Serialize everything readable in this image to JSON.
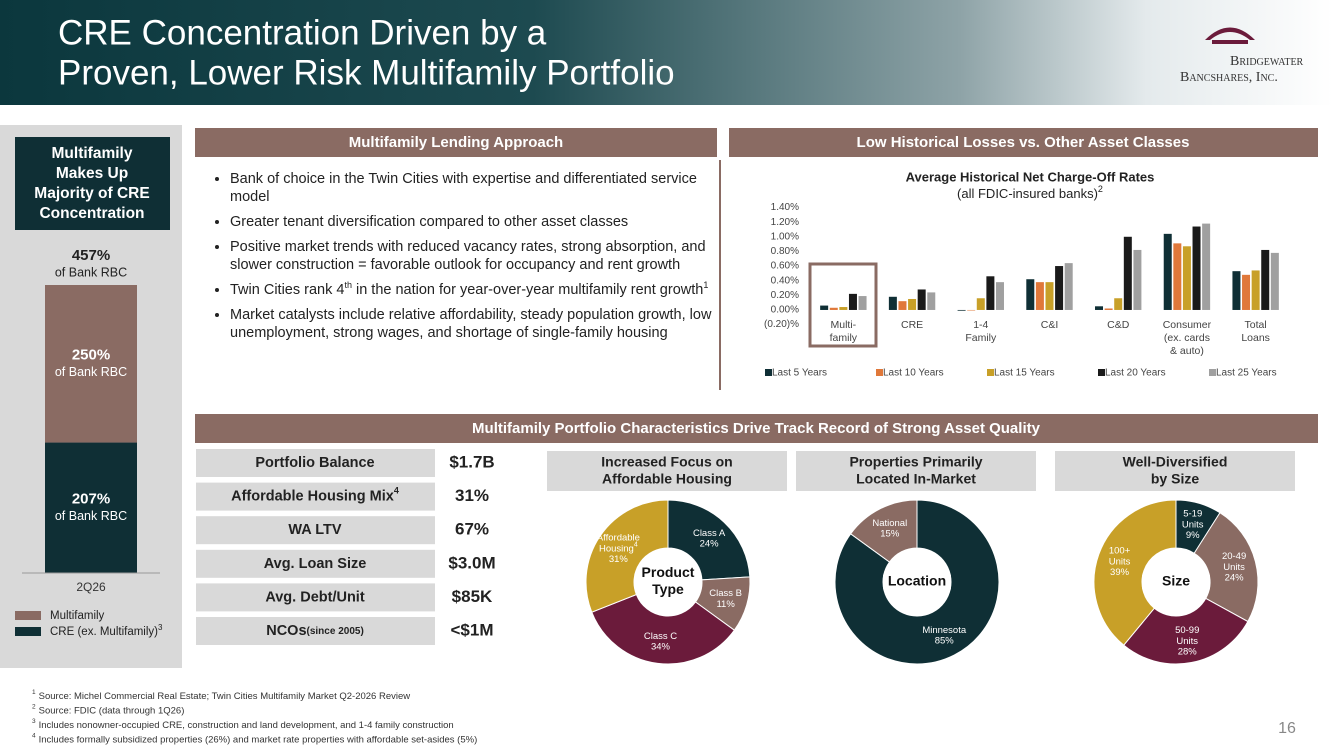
{
  "header": {
    "title": [
      "CRE Concentration Driven by a",
      "Proven, Lower Risk Multifamily Portfolio"
    ],
    "logo": [
      "Bridgewater",
      "Bancshares, Inc."
    ]
  },
  "approach": {
    "heading": "Multifamily Lending Approach",
    "bullets": [
      [
        {
          "text": "Bank of choice in the Twin Cities with expertise and differentiated service model"
        }
      ],
      [
        {
          "text": "Greater tenant diversification compared to other asset classes"
        }
      ],
      [
        {
          "text": "Positive market trends with reduced vacancy rates, strong absorption, and slower construction = favorable outlook for occupancy and rent growth"
        }
      ],
      [
        {
          "text": "Twin Cities rank 4"
        },
        {
          "sup": "th"
        },
        {
          "text": " in the nation for year-over-year multifamily rent growth"
        },
        {
          "sup": "1"
        }
      ],
      [
        {
          "text": "Market catalysts include relative affordability, steady population growth, low unemployment, strong wages, and shortage of single-family housing"
        }
      ]
    ]
  },
  "losses_heading": "Low Historical Losses vs. Other Asset Classes",
  "portfolio": {
    "heading": "Multifamily Portfolio Characteristics Drive Track Record of Strong Asset Quality",
    "rows": [
      {
        "label": "Portfolio Balance",
        "value": "$1.7B"
      },
      {
        "label": "Affordable Housing Mix",
        "label_sup": "4",
        "value": "31%"
      },
      {
        "label": "WA LTV",
        "value": "67%"
      },
      {
        "label": "Avg. Loan Size",
        "value": "$3.0M"
      },
      {
        "label": "Avg. Debt/Unit",
        "value": "$85K"
      },
      {
        "label": "NCOs",
        "label_note": "(since 2005)",
        "value": "<$1M"
      }
    ]
  },
  "chart_data": [
    {
      "type": "stacked_bar",
      "title": [
        "Multifamily",
        "Makes Up",
        "Majority of CRE",
        "Concentration"
      ],
      "categories": [
        "2Q26"
      ],
      "series": [
        {
          "name": "CRE (ex. Multifamily)",
          "name_sup": "3",
          "color": "#0f2f35",
          "values": [
            207
          ],
          "value_labels": [
            "207%"
          ]
        },
        {
          "name": "Multifamily",
          "color": "#8a6b63",
          "values": [
            250
          ],
          "value_labels": [
            "250%"
          ]
        }
      ],
      "segment_caption": "of Bank RBC",
      "total": [
        457
      ],
      "total_labels": [
        "457%"
      ]
    },
    {
      "type": "bar",
      "title": "Average Historical Net Charge-Off Rates",
      "subtitle": "(all FDIC-insured banks)",
      "subtitle_sup": "2",
      "categories": [
        [
          "Multi-",
          "family"
        ],
        [
          "CRE"
        ],
        [
          "1-4",
          "Family"
        ],
        [
          "C&I"
        ],
        [
          "C&D"
        ],
        [
          "Consumer",
          "(ex. cards",
          "& auto)"
        ],
        [
          "Total",
          "Loans"
        ]
      ],
      "series": [
        {
          "name": "Last 5 Years",
          "color": "#0f2f35",
          "values": [
            0.06,
            0.18,
            -0.01,
            0.42,
            0.05,
            1.04,
            0.53
          ]
        },
        {
          "name": "Last 10 Years",
          "color": "#e0783a",
          "values": [
            0.03,
            0.12,
            0.0,
            0.38,
            0.02,
            0.91,
            0.48
          ]
        },
        {
          "name": "Last 15 Years",
          "color": "#c8a028",
          "values": [
            0.04,
            0.15,
            0.16,
            0.38,
            0.16,
            0.87,
            0.54
          ]
        },
        {
          "name": "Last 20 Years",
          "color": "#1a1a1a",
          "values": [
            0.22,
            0.28,
            0.46,
            0.6,
            1.0,
            1.14,
            0.82
          ]
        },
        {
          "name": "Last 25 Years",
          "color": "#a0a0a0",
          "values": [
            0.19,
            0.24,
            0.38,
            0.64,
            0.82,
            1.18,
            0.78
          ]
        }
      ],
      "ylim": [
        -0.2,
        1.4
      ],
      "yticks": [
        {
          "value": -0.2,
          "label": "(0.20)%"
        },
        {
          "value": 0,
          "label": "0.00%"
        },
        {
          "value": 0.2,
          "label": "0.20%"
        },
        {
          "value": 0.4,
          "label": "0.40%"
        },
        {
          "value": 0.6,
          "label": "0.60%"
        },
        {
          "value": 0.8,
          "label": "0.80%"
        },
        {
          "value": 1.0,
          "label": "1.00%"
        },
        {
          "value": 1.2,
          "label": "1.20%"
        },
        {
          "value": 1.4,
          "label": "1.40%"
        }
      ]
    },
    {
      "type": "pie",
      "title": [
        "Increased Focus on",
        "Affordable Housing"
      ],
      "center_label": [
        "Product",
        "Type"
      ],
      "slices": [
        {
          "name": [
            "Class A"
          ],
          "value": 24,
          "value_label": "24%",
          "color": "#0f2f35"
        },
        {
          "name": [
            "Class B"
          ],
          "value": 11,
          "value_label": "11%",
          "color": "#8a6b63"
        },
        {
          "name": [
            "Class C"
          ],
          "value": 34,
          "value_label": "34%",
          "color": "#6b1b3b"
        },
        {
          "name": [
            "Affordable",
            "Housing"
          ],
          "name_sup": "4",
          "value": 31,
          "value_label": "31%",
          "color": "#c8a028"
        }
      ]
    },
    {
      "type": "pie",
      "title": [
        "Properties Primarily",
        "Located In-Market"
      ],
      "center_label": [
        "Location"
      ],
      "slices": [
        {
          "name": [
            "Minnesota"
          ],
          "value": 85,
          "value_label": "85%",
          "color": "#0f2f35"
        },
        {
          "name": [
            "National"
          ],
          "value": 15,
          "value_label": "15%",
          "color": "#8a6b63"
        }
      ]
    },
    {
      "type": "pie",
      "title": [
        "Well-Diversified",
        "by Size"
      ],
      "center_label": [
        "Size"
      ],
      "slices": [
        {
          "name": [
            "5-19",
            "Units"
          ],
          "value": 9,
          "value_label": "9%",
          "color": "#0f2f35"
        },
        {
          "name": [
            "20-49",
            "Units"
          ],
          "value": 24,
          "value_label": "24%",
          "color": "#8a6b63"
        },
        {
          "name": [
            "50-99",
            "Units"
          ],
          "value": 28,
          "value_label": "28%",
          "color": "#6b1b3b"
        },
        {
          "name": [
            "100+",
            "Units"
          ],
          "value": 39,
          "value_label": "39%",
          "color": "#c8a028"
        }
      ]
    }
  ],
  "footnotes": [
    {
      "mark": "1",
      "text": "Source: Michel Commercial Real Estate; Twin Cities Multifamily Market Q2-2026 Review"
    },
    {
      "mark": "2",
      "text": "Source: FDIC (data through 1Q26)"
    },
    {
      "mark": "3",
      "text": "Includes nonowner-occupied CRE, construction and land development, and 1-4 family construction"
    },
    {
      "mark": "4",
      "text": "Includes formally subsidized properties (26%) and market rate properties with affordable set-asides (5%)"
    }
  ],
  "page_number": "16"
}
